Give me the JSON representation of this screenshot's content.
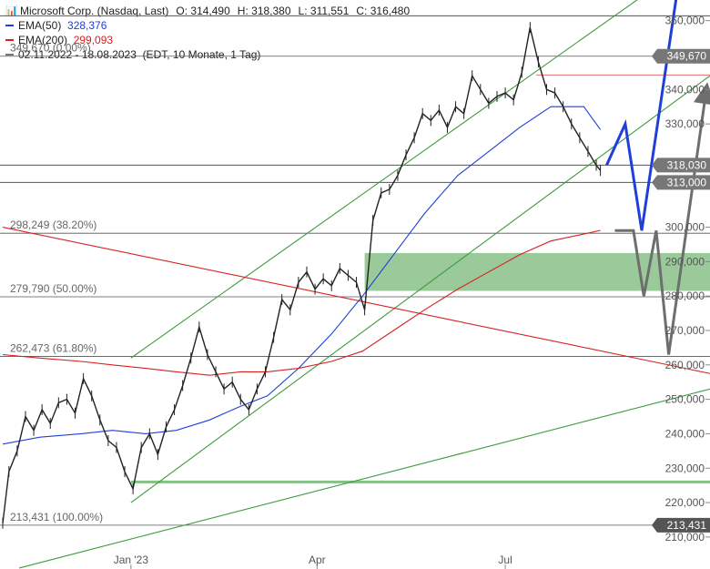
{
  "legend": {
    "instrument": "Microsoft Corp. (Nasdaq, Last)",
    "o_label": "O:",
    "o_value": "314,490",
    "h_label": "H:",
    "h_value": "318,380",
    "l_label": "L:",
    "l_value": "311,551",
    "c_label": "C:",
    "c_value": "316,480",
    "ema50_label": "EMA(50)",
    "ema50_value": "328,376",
    "ema50_color": "#1f3fd9",
    "ema200_label": "EMA(200)",
    "ema200_value": "299,093",
    "ema200_color": "#d91f1f",
    "range": "02.11.2022 - 18.08.2023",
    "meta": "(EDT, 10 Monate, 1 Tag)",
    "chart_icon": "candlestick-icon"
  },
  "chart_data": {
    "type": "candlestick",
    "title": "",
    "xlabel": "",
    "ylabel": "",
    "ylim": [
      206,
      366
    ],
    "xlim": [
      "2022-11-02",
      "2023-10-10"
    ],
    "grid": false,
    "y_ticks": [
      {
        "value": 360,
        "label": "360,000"
      },
      {
        "value": 340,
        "label": "340,000"
      },
      {
        "value": 330,
        "label": "330,000"
      },
      {
        "value": 300,
        "label": "300,000"
      },
      {
        "value": 290,
        "label": "290,000"
      },
      {
        "value": 280,
        "label": "280,000"
      },
      {
        "value": 270,
        "label": "270,000"
      },
      {
        "value": 260,
        "label": "260,000"
      },
      {
        "value": 250,
        "label": "250,000"
      },
      {
        "value": 240,
        "label": "240,000"
      },
      {
        "value": 230,
        "label": "230,000"
      },
      {
        "value": 220,
        "label": "220,000"
      },
      {
        "value": 210,
        "label": "210,000"
      }
    ],
    "x_ticks": [
      {
        "date": "2023-01-03",
        "label": "Jan '23"
      },
      {
        "date": "2023-04-03",
        "label": "Apr"
      },
      {
        "date": "2023-07-03",
        "label": "Jul"
      }
    ],
    "price_tags": [
      {
        "value": 349.67,
        "label": "349,670",
        "color": "#777777"
      },
      {
        "value": 318.03,
        "label": "318,030",
        "color": "#777777"
      },
      {
        "value": 313.0,
        "label": "313,000",
        "color": "#777777"
      },
      {
        "value": 213.431,
        "label": "213,431",
        "color": "#555555"
      }
    ],
    "fib_levels": [
      {
        "value": 349.67,
        "label": "349,670 (0.00%)"
      },
      {
        "value": 298.249,
        "label": "298,249 (38.20%)"
      },
      {
        "value": 279.79,
        "label": "279,790 (50.00%)"
      },
      {
        "value": 262.473,
        "label": "262,473 (61.80%)"
      },
      {
        "value": 213.431,
        "label": "213,431 (100.00%)"
      }
    ],
    "horizontal_lines": [
      {
        "value": 361.4,
        "color": "#555555"
      },
      {
        "value": 318.03,
        "color": "#555555"
      },
      {
        "value": 313.0,
        "color": "#555555"
      },
      {
        "value": 344.2,
        "color": "#e07070",
        "from": "2023-07-18"
      },
      {
        "value": 226.0,
        "color": "#86c086",
        "from": "2023-01-03",
        "width": 3
      }
    ],
    "zones": [
      {
        "low": 281.5,
        "high": 292.5,
        "from": "2023-04-26",
        "color": "#8fc48f"
      }
    ],
    "trendlines": [
      {
        "color": "#3d9b3d",
        "points": [
          [
            "2023-01-03",
            262
          ],
          [
            "2023-10-10",
            381
          ]
        ]
      },
      {
        "color": "#3d9b3d",
        "points": [
          [
            "2023-01-03",
            220
          ],
          [
            "2023-10-10",
            344
          ]
        ]
      },
      {
        "color": "#3d9b3d",
        "points": [
          [
            "2022-11-10",
            201
          ],
          [
            "2023-10-10",
            253
          ]
        ]
      },
      {
        "color": "#d92020",
        "points": [
          [
            "2022-11-02",
            300
          ],
          [
            "2023-10-10",
            257.5
          ]
        ]
      }
    ],
    "projections": [
      {
        "color": "#1f3fd9",
        "width": 3,
        "arrow": true,
        "points": [
          [
            "2023-08-21",
            318
          ],
          [
            "2023-08-30",
            330
          ],
          [
            "2023-09-07",
            299
          ],
          [
            "2023-09-28",
            384
          ]
        ]
      },
      {
        "color": "#6e6e6e",
        "width": 3,
        "arrow": true,
        "points": [
          [
            "2023-08-25",
            299
          ],
          [
            "2023-09-03",
            299
          ],
          [
            "2023-09-08",
            280
          ],
          [
            "2023-09-14",
            299
          ],
          [
            "2023-09-20",
            263
          ],
          [
            "2023-10-08",
            339
          ]
        ]
      }
    ],
    "series": [
      {
        "name": "EMA(50)",
        "color": "#1f3fd9",
        "x": [
          "2022-11-02",
          "2022-11-20",
          "2022-12-10",
          "2022-12-25",
          "2023-01-10",
          "2023-01-25",
          "2023-02-10",
          "2023-02-25",
          "2023-03-10",
          "2023-03-25",
          "2023-04-10",
          "2023-04-25",
          "2023-05-10",
          "2023-05-25",
          "2023-06-10",
          "2023-06-25",
          "2023-07-10",
          "2023-07-25",
          "2023-08-10",
          "2023-08-18"
        ],
        "values": [
          237,
          239,
          240,
          241,
          240,
          241,
          244,
          248,
          251,
          259,
          269,
          280,
          292,
          304,
          315,
          322,
          329,
          335,
          335,
          328.376
        ]
      },
      {
        "name": "EMA(200)",
        "color": "#d91f1f",
        "x": [
          "2022-11-02",
          "2022-11-20",
          "2022-12-10",
          "2022-12-25",
          "2023-01-10",
          "2023-01-25",
          "2023-02-10",
          "2023-02-25",
          "2023-03-10",
          "2023-03-25",
          "2023-04-10",
          "2023-04-25",
          "2023-05-10",
          "2023-05-25",
          "2023-06-10",
          "2023-06-25",
          "2023-07-10",
          "2023-07-25",
          "2023-08-10",
          "2023-08-18"
        ],
        "values": [
          263,
          262,
          261,
          260,
          259,
          258,
          257,
          258,
          258,
          259,
          261,
          264,
          270,
          276,
          282,
          287,
          292,
          296,
          298,
          299.093
        ]
      },
      {
        "name": "Price",
        "color": "#222222",
        "x": [
          "2022-11-02",
          "2022-11-05",
          "2022-11-09",
          "2022-11-13",
          "2022-11-17",
          "2022-11-21",
          "2022-11-25",
          "2022-11-29",
          "2022-12-03",
          "2022-12-07",
          "2022-12-11",
          "2022-12-15",
          "2022-12-19",
          "2022-12-23",
          "2022-12-27",
          "2022-12-31",
          "2023-01-04",
          "2023-01-08",
          "2023-01-12",
          "2023-01-16",
          "2023-01-20",
          "2023-01-24",
          "2023-01-28",
          "2023-02-01",
          "2023-02-05",
          "2023-02-09",
          "2023-02-13",
          "2023-02-17",
          "2023-02-21",
          "2023-02-25",
          "2023-03-01",
          "2023-03-05",
          "2023-03-09",
          "2023-03-13",
          "2023-03-17",
          "2023-03-21",
          "2023-03-25",
          "2023-03-29",
          "2023-04-02",
          "2023-04-06",
          "2023-04-10",
          "2023-04-14",
          "2023-04-18",
          "2023-04-22",
          "2023-04-26",
          "2023-04-30",
          "2023-05-04",
          "2023-05-08",
          "2023-05-12",
          "2023-05-16",
          "2023-05-20",
          "2023-05-24",
          "2023-05-28",
          "2023-06-01",
          "2023-06-05",
          "2023-06-09",
          "2023-06-13",
          "2023-06-17",
          "2023-06-21",
          "2023-06-25",
          "2023-06-29",
          "2023-07-03",
          "2023-07-07",
          "2023-07-11",
          "2023-07-15",
          "2023-07-19",
          "2023-07-23",
          "2023-07-27",
          "2023-07-31",
          "2023-08-04",
          "2023-08-08",
          "2023-08-12",
          "2023-08-16",
          "2023-08-18"
        ],
        "values": [
          214,
          229,
          235,
          245,
          241,
          247,
          243,
          249,
          250,
          246,
          256,
          251,
          244,
          238,
          236,
          229,
          224,
          236,
          240,
          234,
          242,
          247,
          254,
          262,
          271,
          263,
          258,
          253,
          255,
          250,
          247,
          253,
          258,
          268,
          279,
          276,
          284,
          287,
          282,
          285,
          283,
          288,
          286,
          284,
          276,
          302,
          310,
          311,
          315,
          321,
          326,
          333,
          331,
          334,
          329,
          335,
          333,
          344,
          340,
          336,
          338,
          339,
          337,
          345,
          358,
          348,
          340,
          339,
          335,
          330,
          326,
          322,
          318,
          316.48
        ]
      }
    ]
  }
}
